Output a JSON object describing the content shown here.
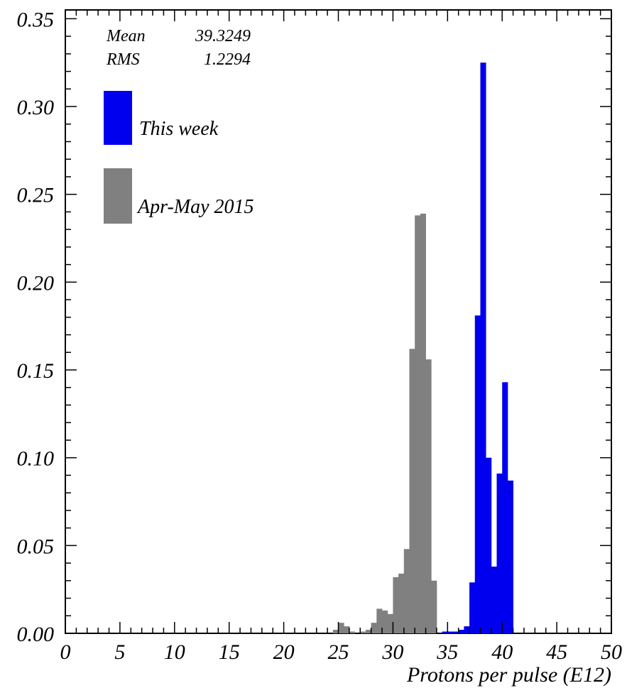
{
  "chart_data": {
    "type": "histogram",
    "xlabel": "Protons per pulse (E12)",
    "ylabel": "",
    "xlim": [
      0,
      50
    ],
    "ylim": [
      0,
      0.355
    ],
    "bin_width": 0.5,
    "x_ticks": [
      "0",
      "5",
      "10",
      "15",
      "20",
      "25",
      "30",
      "35",
      "40",
      "45",
      "50"
    ],
    "y_ticks": [
      "0.00",
      "0.05",
      "0.10",
      "0.15",
      "0.20",
      "0.25",
      "0.30",
      "0.35"
    ],
    "grid": false,
    "legend_placement": "top-left",
    "stats": {
      "mean_label": "Mean",
      "mean_value": "39.3249",
      "rms_label": "RMS",
      "rms_value": "1.2294"
    },
    "series": [
      {
        "name": "Apr-May 2015",
        "color": "#808080",
        "bins": [
          [
            24.5,
            0.002
          ],
          [
            25.0,
            0.006
          ],
          [
            25.5,
            0.004
          ],
          [
            26.0,
            0.001
          ],
          [
            27.0,
            0.001
          ],
          [
            27.5,
            0.002
          ],
          [
            28.0,
            0.006
          ],
          [
            28.5,
            0.014
          ],
          [
            29.0,
            0.013
          ],
          [
            29.5,
            0.011
          ],
          [
            30.0,
            0.032
          ],
          [
            30.5,
            0.034
          ],
          [
            31.0,
            0.048
          ],
          [
            31.5,
            0.162
          ],
          [
            32.0,
            0.238
          ],
          [
            32.5,
            0.239
          ],
          [
            33.0,
            0.156
          ],
          [
            33.5,
            0.03
          ]
        ]
      },
      {
        "name": "This week",
        "color": "#0000ee",
        "bins": [
          [
            34.5,
            0.001
          ],
          [
            35.0,
            0.001
          ],
          [
            35.5,
            0.001
          ],
          [
            36.0,
            0.002
          ],
          [
            36.5,
            0.004
          ],
          [
            37.0,
            0.029
          ],
          [
            37.5,
            0.181
          ],
          [
            38.0,
            0.325
          ],
          [
            38.5,
            0.1
          ],
          [
            39.0,
            0.038
          ],
          [
            39.5,
            0.091
          ],
          [
            40.0,
            0.143
          ],
          [
            40.5,
            0.087
          ]
        ]
      }
    ]
  }
}
